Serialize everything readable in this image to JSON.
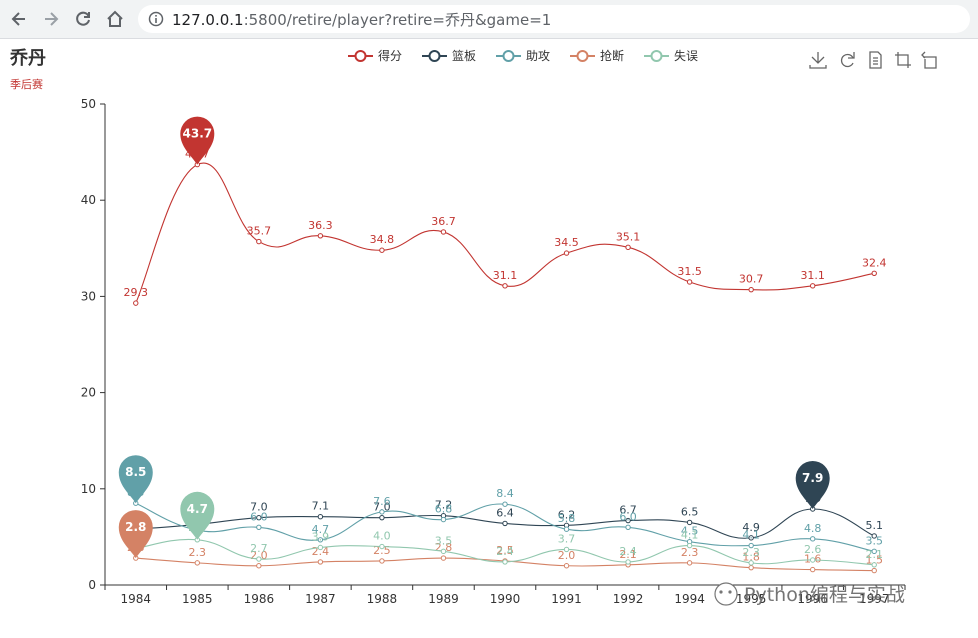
{
  "browser": {
    "url_host": "127.0.0.1",
    "url_rest": ":5800/retire/player?retire=乔丹&game=1"
  },
  "toolbox": {
    "icons": [
      "download-icon",
      "refresh-icon",
      "data-view-icon",
      "zoom-icon",
      "zoom-reset-icon"
    ]
  },
  "watermark": "Python编程与实战",
  "chart_data": {
    "type": "line",
    "title": "乔丹",
    "subtitle": "季后赛",
    "categories": [
      "1984",
      "1985",
      "1986",
      "1987",
      "1988",
      "1989",
      "1990",
      "1991",
      "1992",
      "1994",
      "1995",
      "1996",
      "1997"
    ],
    "visible_tick_labels": [
      "1984",
      "1985",
      "1986",
      "1987",
      "1988",
      "1989",
      "1990",
      "1991",
      "1992",
      "1994",
      "1995",
      "1996",
      "1997"
    ],
    "ylim": [
      0,
      50
    ],
    "yticks": [
      0,
      10,
      20,
      30,
      40,
      50
    ],
    "legend_position": "top-center",
    "smooth": true,
    "series": [
      {
        "name": "得分",
        "color": "#c23531",
        "values": [
          29.3,
          43.7,
          35.7,
          36.3,
          34.8,
          36.7,
          31.1,
          34.5,
          35.1,
          31.5,
          30.7,
          31.1,
          32.4
        ],
        "max_marker": "43.7",
        "max_index": 1
      },
      {
        "name": "篮板",
        "color": "#2f4554",
        "values": [
          5.8,
          6.3,
          7.0,
          7.1,
          7.0,
          7.2,
          6.4,
          6.2,
          6.7,
          6.5,
          4.9,
          7.9,
          5.1
        ],
        "max_marker": "7.9",
        "max_index": 11
      },
      {
        "name": "助攻",
        "color": "#61a0a8",
        "values": [
          8.5,
          5.7,
          6.0,
          4.7,
          7.6,
          6.8,
          8.4,
          5.8,
          6.0,
          4.5,
          4.1,
          4.8,
          3.5
        ],
        "max_marker": "8.5",
        "max_index": 0
      },
      {
        "name": "抢断",
        "color": "#d48265",
        "values": [
          2.8,
          2.3,
          2.0,
          2.4,
          2.5,
          2.8,
          2.5,
          2.0,
          2.1,
          2.3,
          1.8,
          1.6,
          1.5
        ],
        "max_marker": "2.8",
        "max_index": 0
      },
      {
        "name": "失误",
        "color": "#91c7ae",
        "values": [
          3.8,
          4.7,
          2.7,
          3.9,
          4.0,
          3.5,
          2.4,
          3.7,
          2.4,
          4.1,
          2.3,
          2.6,
          2.1
        ],
        "max_marker": "4.7",
        "max_index": 1
      }
    ]
  }
}
